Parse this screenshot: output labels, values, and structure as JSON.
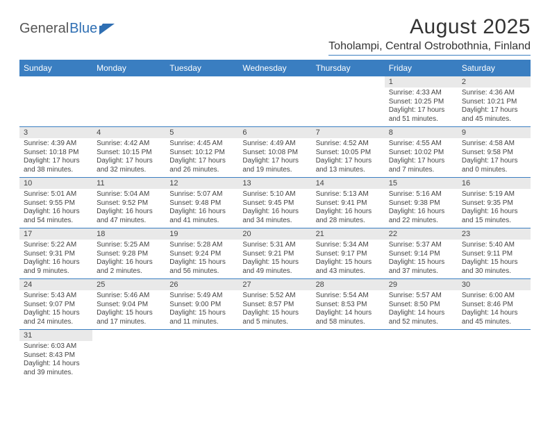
{
  "brand": {
    "general": "General",
    "blue": "Blue"
  },
  "title": "August 2025",
  "location": "Toholampi, Central Ostrobothnia, Finland",
  "colors": {
    "header_bg": "#3a7ec1",
    "header_text": "#ffffff",
    "daynum_bg": "#e9e9e9",
    "row_border": "#3a7ec1",
    "text": "#444444"
  },
  "weekdays": [
    "Sunday",
    "Monday",
    "Tuesday",
    "Wednesday",
    "Thursday",
    "Friday",
    "Saturday"
  ],
  "weeks": [
    [
      null,
      null,
      null,
      null,
      null,
      {
        "n": "1",
        "sr": "Sunrise: 4:33 AM",
        "ss": "Sunset: 10:25 PM",
        "dl": "Daylight: 17 hours and 51 minutes."
      },
      {
        "n": "2",
        "sr": "Sunrise: 4:36 AM",
        "ss": "Sunset: 10:21 PM",
        "dl": "Daylight: 17 hours and 45 minutes."
      }
    ],
    [
      {
        "n": "3",
        "sr": "Sunrise: 4:39 AM",
        "ss": "Sunset: 10:18 PM",
        "dl": "Daylight: 17 hours and 38 minutes."
      },
      {
        "n": "4",
        "sr": "Sunrise: 4:42 AM",
        "ss": "Sunset: 10:15 PM",
        "dl": "Daylight: 17 hours and 32 minutes."
      },
      {
        "n": "5",
        "sr": "Sunrise: 4:45 AM",
        "ss": "Sunset: 10:12 PM",
        "dl": "Daylight: 17 hours and 26 minutes."
      },
      {
        "n": "6",
        "sr": "Sunrise: 4:49 AM",
        "ss": "Sunset: 10:08 PM",
        "dl": "Daylight: 17 hours and 19 minutes."
      },
      {
        "n": "7",
        "sr": "Sunrise: 4:52 AM",
        "ss": "Sunset: 10:05 PM",
        "dl": "Daylight: 17 hours and 13 minutes."
      },
      {
        "n": "8",
        "sr": "Sunrise: 4:55 AM",
        "ss": "Sunset: 10:02 PM",
        "dl": "Daylight: 17 hours and 7 minutes."
      },
      {
        "n": "9",
        "sr": "Sunrise: 4:58 AM",
        "ss": "Sunset: 9:58 PM",
        "dl": "Daylight: 17 hours and 0 minutes."
      }
    ],
    [
      {
        "n": "10",
        "sr": "Sunrise: 5:01 AM",
        "ss": "Sunset: 9:55 PM",
        "dl": "Daylight: 16 hours and 54 minutes."
      },
      {
        "n": "11",
        "sr": "Sunrise: 5:04 AM",
        "ss": "Sunset: 9:52 PM",
        "dl": "Daylight: 16 hours and 47 minutes."
      },
      {
        "n": "12",
        "sr": "Sunrise: 5:07 AM",
        "ss": "Sunset: 9:48 PM",
        "dl": "Daylight: 16 hours and 41 minutes."
      },
      {
        "n": "13",
        "sr": "Sunrise: 5:10 AM",
        "ss": "Sunset: 9:45 PM",
        "dl": "Daylight: 16 hours and 34 minutes."
      },
      {
        "n": "14",
        "sr": "Sunrise: 5:13 AM",
        "ss": "Sunset: 9:41 PM",
        "dl": "Daylight: 16 hours and 28 minutes."
      },
      {
        "n": "15",
        "sr": "Sunrise: 5:16 AM",
        "ss": "Sunset: 9:38 PM",
        "dl": "Daylight: 16 hours and 22 minutes."
      },
      {
        "n": "16",
        "sr": "Sunrise: 5:19 AM",
        "ss": "Sunset: 9:35 PM",
        "dl": "Daylight: 16 hours and 15 minutes."
      }
    ],
    [
      {
        "n": "17",
        "sr": "Sunrise: 5:22 AM",
        "ss": "Sunset: 9:31 PM",
        "dl": "Daylight: 16 hours and 9 minutes."
      },
      {
        "n": "18",
        "sr": "Sunrise: 5:25 AM",
        "ss": "Sunset: 9:28 PM",
        "dl": "Daylight: 16 hours and 2 minutes."
      },
      {
        "n": "19",
        "sr": "Sunrise: 5:28 AM",
        "ss": "Sunset: 9:24 PM",
        "dl": "Daylight: 15 hours and 56 minutes."
      },
      {
        "n": "20",
        "sr": "Sunrise: 5:31 AM",
        "ss": "Sunset: 9:21 PM",
        "dl": "Daylight: 15 hours and 49 minutes."
      },
      {
        "n": "21",
        "sr": "Sunrise: 5:34 AM",
        "ss": "Sunset: 9:17 PM",
        "dl": "Daylight: 15 hours and 43 minutes."
      },
      {
        "n": "22",
        "sr": "Sunrise: 5:37 AM",
        "ss": "Sunset: 9:14 PM",
        "dl": "Daylight: 15 hours and 37 minutes."
      },
      {
        "n": "23",
        "sr": "Sunrise: 5:40 AM",
        "ss": "Sunset: 9:11 PM",
        "dl": "Daylight: 15 hours and 30 minutes."
      }
    ],
    [
      {
        "n": "24",
        "sr": "Sunrise: 5:43 AM",
        "ss": "Sunset: 9:07 PM",
        "dl": "Daylight: 15 hours and 24 minutes."
      },
      {
        "n": "25",
        "sr": "Sunrise: 5:46 AM",
        "ss": "Sunset: 9:04 PM",
        "dl": "Daylight: 15 hours and 17 minutes."
      },
      {
        "n": "26",
        "sr": "Sunrise: 5:49 AM",
        "ss": "Sunset: 9:00 PM",
        "dl": "Daylight: 15 hours and 11 minutes."
      },
      {
        "n": "27",
        "sr": "Sunrise: 5:52 AM",
        "ss": "Sunset: 8:57 PM",
        "dl": "Daylight: 15 hours and 5 minutes."
      },
      {
        "n": "28",
        "sr": "Sunrise: 5:54 AM",
        "ss": "Sunset: 8:53 PM",
        "dl": "Daylight: 14 hours and 58 minutes."
      },
      {
        "n": "29",
        "sr": "Sunrise: 5:57 AM",
        "ss": "Sunset: 8:50 PM",
        "dl": "Daylight: 14 hours and 52 minutes."
      },
      {
        "n": "30",
        "sr": "Sunrise: 6:00 AM",
        "ss": "Sunset: 8:46 PM",
        "dl": "Daylight: 14 hours and 45 minutes."
      }
    ],
    [
      {
        "n": "31",
        "sr": "Sunrise: 6:03 AM",
        "ss": "Sunset: 8:43 PM",
        "dl": "Daylight: 14 hours and 39 minutes."
      },
      null,
      null,
      null,
      null,
      null,
      null
    ]
  ]
}
